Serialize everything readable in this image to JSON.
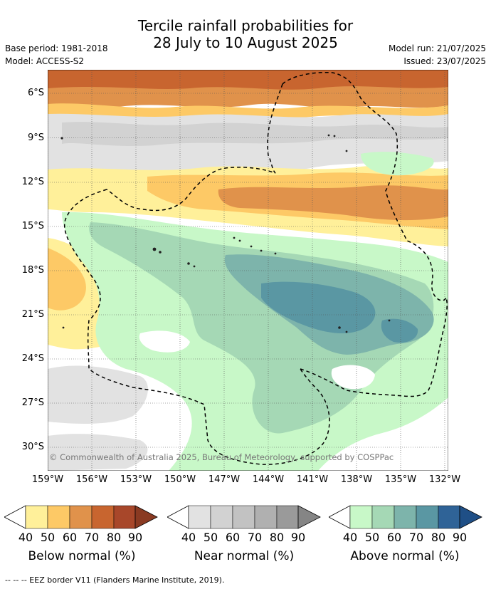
{
  "header": {
    "title_line1": "Tercile rainfall probabilities for",
    "title_line2": "28 July to 10 August 2025",
    "base_period": "Base period: 1981-2018",
    "model": "Model: ACCESS-S2",
    "model_run": "Model run: 21/07/2025",
    "issued": "Issued: 23/07/2025"
  },
  "map": {
    "copyright": "© Commonwealth of Australia 2025, Bureau of Meteorology, supported by COSPPac",
    "lat_labels": [
      "6°S",
      "9°S",
      "12°S",
      "15°S",
      "18°S",
      "21°S",
      "24°S",
      "27°S",
      "30°S"
    ],
    "lon_labels": [
      "159°W",
      "156°W",
      "153°W",
      "150°W",
      "147°W",
      "144°W",
      "141°W",
      "138°W",
      "135°W",
      "132°W"
    ]
  },
  "legend": {
    "ticks": [
      "40",
      "50",
      "60",
      "70",
      "80",
      "90"
    ],
    "below_label": "Below normal (%)",
    "near_label": "Near normal (%)",
    "above_label": "Above normal (%)",
    "below_colors": [
      "#fff09a",
      "#fdc966",
      "#e0924b",
      "#c8652f",
      "#a8472a"
    ],
    "near_colors": [
      "#e2e2e2",
      "#d2d2d2",
      "#c2c2c2",
      "#b0b0b0",
      "#9a9a9a"
    ],
    "above_colors": [
      "#c8f8c8",
      "#a5d8b5",
      "#7db4ab",
      "#5a97a3",
      "#2f6397"
    ]
  },
  "footer": {
    "eez_note": "--  --  -- EEZ border V11 (Flanders Marine Institute, 2019)."
  }
}
